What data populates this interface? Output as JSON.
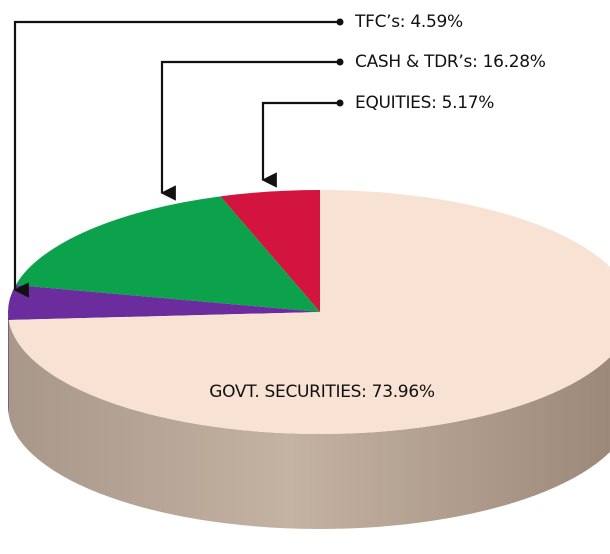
{
  "chart_data": {
    "type": "pie3d",
    "value_labels": [
      "EQUITIES: 5.17%",
      "CASH & TDR’s: 16.28%",
      "TFC’s: 4.59%",
      "GOVT. SECURITIES: 73.96%"
    ],
    "values": [
      5.17,
      16.28,
      4.59,
      73.96
    ],
    "colors": [
      "#d3143f",
      "#0ba24b",
      "#6b2c9e",
      "#f8e2d3"
    ],
    "side_colors": [
      "#8e0c28",
      "#067032",
      "#451a6a",
      "url(#sideGrad)"
    ]
  }
}
